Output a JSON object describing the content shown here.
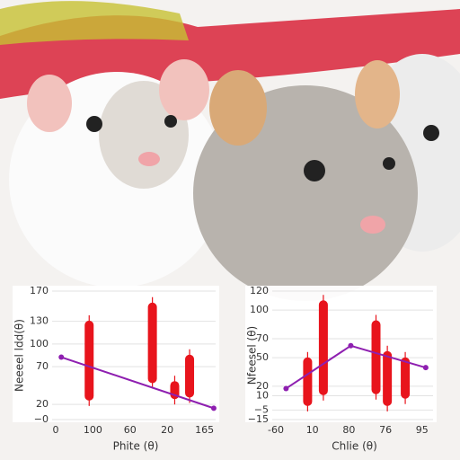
{
  "chart_data": [
    {
      "type": "range-line",
      "ylabel": "Neeeel ldd(θ)",
      "xlabel": "Phite (θ)",
      "categories": [
        "0",
        "100",
        "60",
        "20",
        "165"
      ],
      "xlim": [
        0,
        4.3
      ],
      "ylim": [
        0,
        170
      ],
      "yticks": [
        170,
        130,
        100,
        70,
        20,
        {
          "value": 0,
          "label": "−0"
        }
      ],
      "line": {
        "color": "#8e1fb0",
        "x": [
          0.15,
          4.25
        ],
        "values": [
          82.6,
          15
        ]
      },
      "bars": {
        "color": "#e8141c",
        "x": [
          0.9,
          2.6,
          3.2,
          3.6
        ],
        "high": [
          138,
          162,
          58,
          93
        ],
        "low": [
          18,
          41,
          20,
          22
        ]
      }
    },
    {
      "type": "range-line",
      "ylabel": "Nfeesel (θ)",
      "xlabel": "Chlie (θ)",
      "categories": [
        "-60",
        "10",
        "80",
        "76",
        "95"
      ],
      "xlim": [
        0,
        4.3
      ],
      "ylim": [
        -15,
        120
      ],
      "yticks": [
        120,
        100,
        70,
        50,
        20,
        10,
        {
          "value": -5,
          "label": "−5"
        },
        {
          "value": -15,
          "label": "−15"
        }
      ],
      "line": {
        "color": "#8e1fb0",
        "x": [
          0.28,
          2.05,
          4.1
        ],
        "values": [
          17.6,
          62.6,
          39.6
        ]
      },
      "bars": {
        "color": "#e8141c",
        "x": [
          0.87,
          1.3,
          2.74,
          3.05,
          3.54
        ],
        "high": [
          56,
          116,
          95,
          62.6,
          56
        ],
        "low": [
          -6.4,
          5,
          6,
          -6.4,
          1.3
        ]
      }
    }
  ]
}
